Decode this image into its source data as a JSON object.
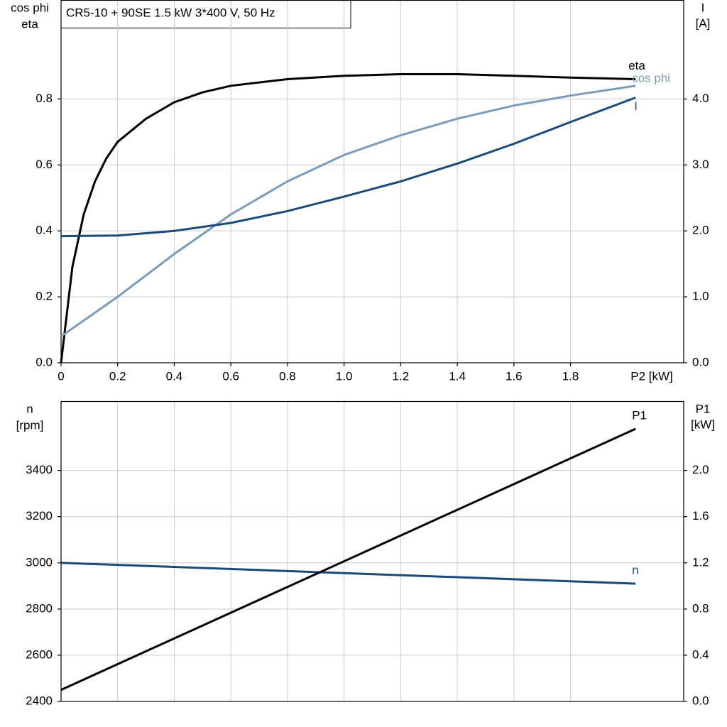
{
  "chart_data": [
    {
      "type": "line",
      "title": "CR5-10 + 90SE   1.5 kW   3*400 V, 50 Hz",
      "ylabel": [
        "cos phi",
        "eta"
      ],
      "y2label": [
        "I",
        "[A]"
      ],
      "xlabel": "P2 [kW]",
      "xlim": [
        0,
        2.2
      ],
      "xticks": [
        {
          "value": 0,
          "label": "0"
        },
        0.2,
        0.4,
        0.6,
        0.8,
        {
          "value": 1,
          "label": "1.0"
        },
        1.2,
        1.4,
        1.6,
        1.8
      ],
      "ylim": [
        0,
        1.1
      ],
      "yticks": [
        {
          "value": 0,
          "label": "0.0"
        },
        0.2,
        0.4,
        0.6,
        0.8
      ],
      "y2lim": [
        0,
        5.5
      ],
      "y2ticks": [
        {
          "value": 0,
          "label": "0.0"
        },
        {
          "value": 1,
          "label": "1.0"
        },
        {
          "value": 2,
          "label": "2.0"
        },
        {
          "value": 3,
          "label": "3.0"
        },
        {
          "value": 4,
          "label": "4.0"
        }
      ],
      "grid": true,
      "series": [
        {
          "name": "eta",
          "color": "#000000",
          "x": [
            0,
            0.04,
            0.08,
            0.12,
            0.16,
            0.2,
            0.3,
            0.4,
            0.5,
            0.6,
            0.8,
            1.0,
            1.2,
            1.4,
            1.6,
            1.8,
            2.03
          ],
          "values": [
            0,
            0.29,
            0.45,
            0.55,
            0.62,
            0.67,
            0.74,
            0.79,
            0.82,
            0.84,
            0.86,
            0.87,
            0.875,
            0.875,
            0.87,
            0.865,
            0.86
          ]
        },
        {
          "name": "cos phi",
          "color": "#7a9cbb",
          "x": [
            0,
            0.2,
            0.4,
            0.6,
            0.8,
            1.0,
            1.2,
            1.4,
            1.6,
            1.8,
            2.03
          ],
          "values": [
            0.08,
            0.2,
            0.33,
            0.45,
            0.55,
            0.63,
            0.69,
            0.74,
            0.78,
            0.81,
            0.84
          ]
        },
        {
          "name": "I",
          "color": "#1a4a7a",
          "axis": "y2",
          "x": [
            0,
            0.2,
            0.4,
            0.6,
            0.8,
            1.0,
            1.2,
            1.4,
            1.6,
            1.8,
            2.03
          ],
          "values": [
            1.92,
            1.93,
            2.0,
            2.12,
            2.3,
            2.52,
            2.75,
            3.02,
            3.32,
            3.65,
            4.02
          ]
        }
      ]
    },
    {
      "type": "line",
      "ylabel": [
        "n",
        "[rpm]"
      ],
      "y2label": [
        "P1",
        "[kW]"
      ],
      "xlim": [
        0,
        2.2
      ],
      "ylim": [
        2400,
        3700
      ],
      "yticks": [
        2400,
        2600,
        2800,
        3000,
        3200,
        3400
      ],
      "y2lim": [
        0,
        2.6
      ],
      "y2ticks": [
        {
          "value": 0,
          "label": "0.0"
        },
        0.4,
        0.8,
        1.2,
        1.6,
        {
          "value": 2,
          "label": "2.0"
        }
      ],
      "grid": true,
      "series": [
        {
          "name": "n",
          "color": "#1a4a7a",
          "x": [
            0,
            2.03
          ],
          "values": [
            3000,
            2910
          ]
        },
        {
          "name": "P1",
          "color": "#000000",
          "axis": "y2",
          "x": [
            0,
            2.03
          ],
          "values": [
            0.1,
            2.36
          ]
        }
      ]
    }
  ]
}
